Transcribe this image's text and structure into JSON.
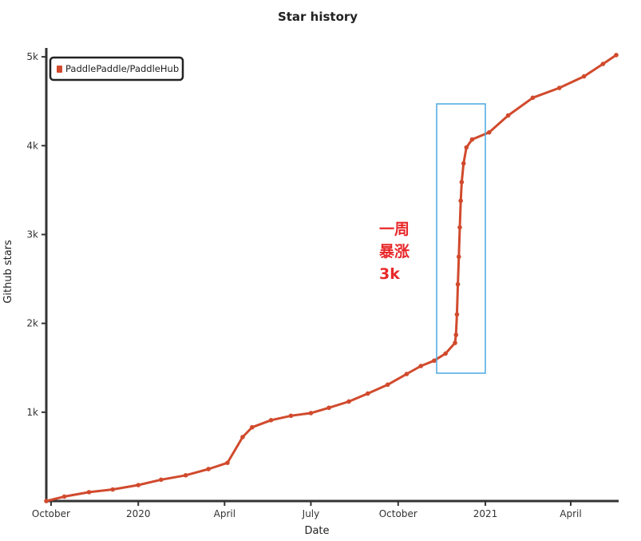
{
  "chart_data": {
    "type": "line",
    "title": "Star history",
    "xlabel": "Date",
    "ylabel": "Github stars",
    "x_tick_labels": [
      "October",
      "2020",
      "April",
      "July",
      "October",
      "2021",
      "April"
    ],
    "y_tick_labels": [
      "1k",
      "2k",
      "3k",
      "4k",
      "5k"
    ],
    "y_ticks": [
      1000,
      2000,
      3000,
      4000,
      5000
    ],
    "ylim": [
      0,
      5100
    ],
    "grid": false,
    "legend_position": "top-left",
    "series": [
      {
        "name": "PaddlePaddle/PaddleHub",
        "color": "#d14a2d",
        "points": [
          [
            "2019-09-26",
            0
          ],
          [
            "2019-10-15",
            50
          ],
          [
            "2019-11-10",
            100
          ],
          [
            "2019-12-05",
            130
          ],
          [
            "2020-01-01",
            180
          ],
          [
            "2020-01-25",
            240
          ],
          [
            "2020-02-20",
            290
          ],
          [
            "2020-03-15",
            360
          ],
          [
            "2020-04-04",
            430
          ],
          [
            "2020-04-20",
            720
          ],
          [
            "2020-04-30",
            830
          ],
          [
            "2020-05-20",
            910
          ],
          [
            "2020-06-10",
            960
          ],
          [
            "2020-07-01",
            990
          ],
          [
            "2020-07-20",
            1050
          ],
          [
            "2020-08-10",
            1120
          ],
          [
            "2020-08-30",
            1210
          ],
          [
            "2020-09-20",
            1310
          ],
          [
            "2020-10-10",
            1430
          ],
          [
            "2020-10-25",
            1520
          ],
          [
            "2020-11-08",
            1580
          ],
          [
            "2020-11-20",
            1660
          ],
          [
            "2020-11-30",
            1780
          ],
          [
            "2020-12-01",
            1870
          ],
          [
            "2020-12-02",
            2100
          ],
          [
            "2020-12-03",
            2440
          ],
          [
            "2020-12-04",
            2750
          ],
          [
            "2020-12-05",
            3080
          ],
          [
            "2020-12-06",
            3380
          ],
          [
            "2020-12-07",
            3590
          ],
          [
            "2020-12-09",
            3800
          ],
          [
            "2020-12-12",
            3980
          ],
          [
            "2020-12-18",
            4070
          ],
          [
            "2021-01-05",
            4150
          ],
          [
            "2021-01-25",
            4340
          ],
          [
            "2021-02-20",
            4540
          ],
          [
            "2021-03-20",
            4650
          ],
          [
            "2021-04-15",
            4780
          ],
          [
            "2021-05-05",
            4920
          ],
          [
            "2021-05-19",
            5020
          ]
        ]
      }
    ],
    "annotation": {
      "lines": [
        "一周",
        "暴涨",
        "3k"
      ],
      "color": "#e8282a",
      "box_color": "#4aa9e0"
    }
  }
}
